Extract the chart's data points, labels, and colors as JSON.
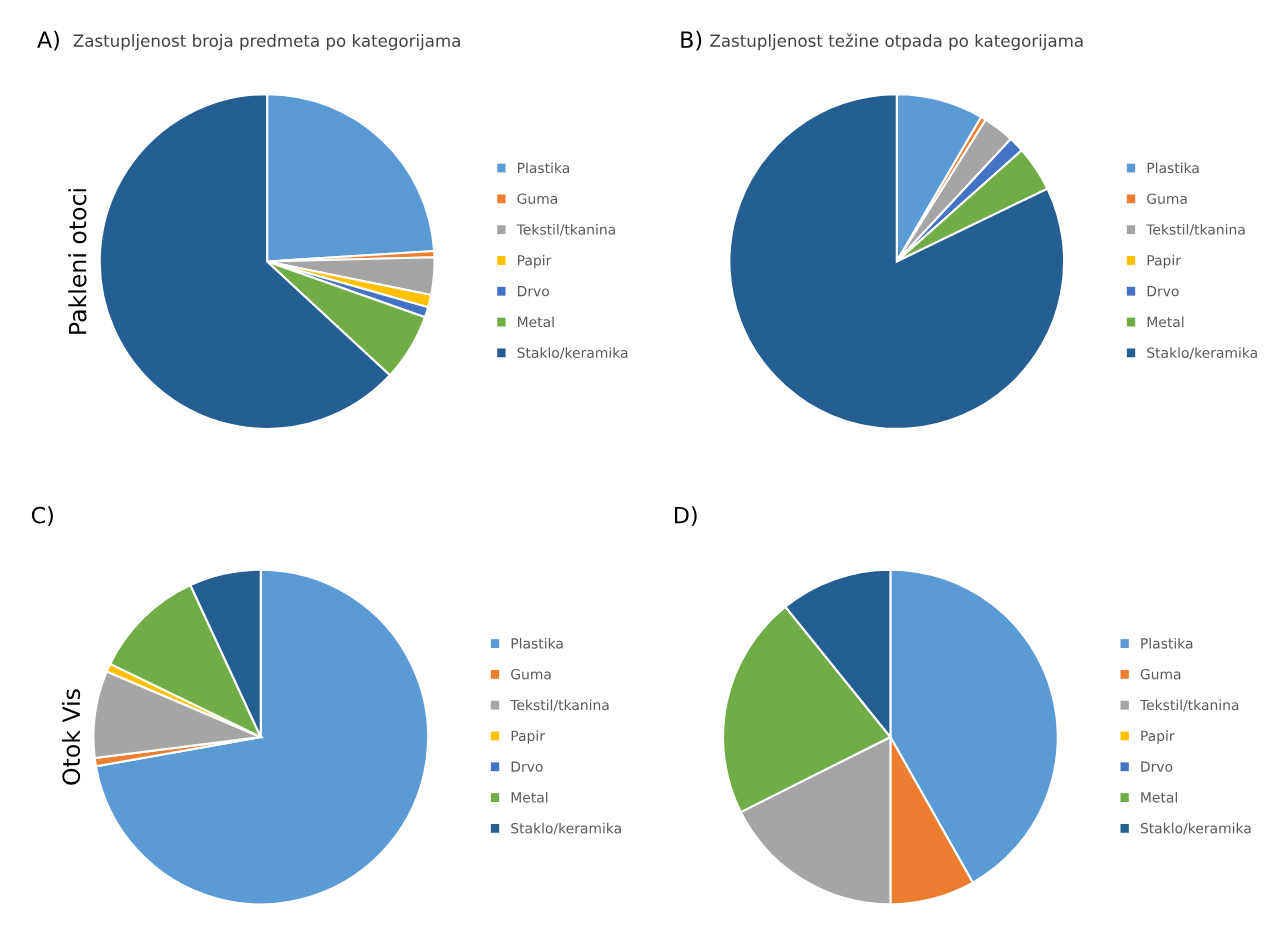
{
  "chart_data": [
    {
      "type": "pie",
      "title": "Zastupljenost broja predmeta po kategorijama",
      "ylabel": "Pakleni otoci",
      "annotations": [
        "A)"
      ],
      "legend": "right",
      "categories": [
        "Plastika",
        "Guma",
        "Tekstil/tkanina",
        "Papir",
        "Drvo",
        "Metal",
        "Staklo/keramika"
      ],
      "values": [
        24,
        0.6,
        3.6,
        1.2,
        1.0,
        6.5,
        63.1
      ],
      "colors": [
        "#5b9bd5",
        "#ed7d31",
        "#a5a5a5",
        "#ffc000",
        "#4472c4",
        "#70ad47",
        "#255e91"
      ]
    },
    {
      "type": "pie",
      "title": "Zastupljenost težine otpada po kategorijama",
      "annotations": [
        "B)"
      ],
      "legend": "right",
      "categories": [
        "Plastika",
        "Guma",
        "Tekstil/tkanina",
        "Papir",
        "Drvo",
        "Metal",
        "Staklo/keramika"
      ],
      "values": [
        8.4,
        0.5,
        3.0,
        null,
        1.5,
        4.4,
        82.0
      ],
      "colors": [
        "#5b9bd5",
        "#ed7d31",
        "#a5a5a5",
        "#ffc000",
        "#4472c4",
        "#70ad47",
        "#255e91"
      ]
    },
    {
      "type": "pie",
      "ylabel": "Otok Vis",
      "annotations": [
        "C)"
      ],
      "legend": "right",
      "categories": [
        "Plastika",
        "Guma",
        "Tekstil/tkanina",
        "Papir",
        "Drvo",
        "Metal",
        "Staklo/keramika"
      ],
      "values": [
        72.2,
        0.8,
        8.4,
        0.8,
        0,
        10.9,
        6.9
      ],
      "colors": [
        "#5b9bd5",
        "#ed7d31",
        "#a5a5a5",
        "#ffc000",
        "#4472c4",
        "#70ad47",
        "#255e91"
      ]
    },
    {
      "type": "pie",
      "annotations": [
        "D)"
      ],
      "legend": "right",
      "categories": [
        "Plastika",
        "Guma",
        "Tekstil/tkanina",
        "Papir",
        "Drvo",
        "Metal",
        "Staklo/keramika"
      ],
      "values": [
        41.8,
        8.2,
        17.6,
        0,
        0,
        21.6,
        10.8
      ],
      "colors": [
        "#5b9bd5",
        "#ed7d31",
        "#a5a5a5",
        "#ffc000",
        "#4472c4",
        "#70ad47",
        "#255e91"
      ]
    }
  ]
}
